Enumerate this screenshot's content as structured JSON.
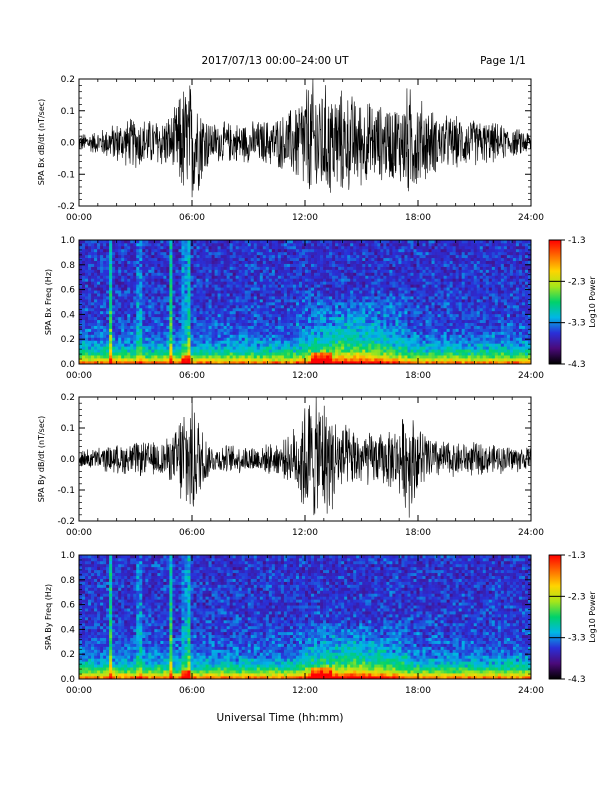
{
  "header": {
    "title": "2017/07/13  00:00–24:00 UT",
    "page": "Page 1/1"
  },
  "footer": {
    "xlabel": "Universal Time (hh:mm)"
  },
  "colorbar": {
    "label": "Log10 Power",
    "ticks": [
      "-1.3",
      "-2.3",
      "-3.3",
      "-4.3"
    ],
    "range": [
      -4.3,
      -1.3
    ],
    "colors": [
      "#000000",
      "#4b0a7a",
      "#2a2fd8",
      "#00b7e6",
      "#00d26a",
      "#a6e61a",
      "#ffd400",
      "#ff6a00",
      "#ff0000"
    ]
  },
  "chart_data": [
    {
      "type": "line",
      "title": "",
      "ylabel": "SPA Bx dB/dt (nT/sec)",
      "xlabel": "",
      "xlim": [
        "00:00",
        "24:00"
      ],
      "ylim": [
        -0.2,
        0.2
      ],
      "x_ticks": [
        "00:00",
        "06:00",
        "12:00",
        "18:00",
        "24:00"
      ],
      "y_ticks": [
        "-0.2",
        "-0.1",
        "0.0",
        "0.1",
        "0.2"
      ],
      "envelope": {
        "hours": [
          0,
          1,
          2,
          3,
          4,
          5,
          5.5,
          6,
          7,
          8,
          9,
          10,
          11,
          11.5,
          12,
          12.5,
          13,
          14,
          15,
          16,
          17,
          17.5,
          18,
          19,
          20,
          21,
          22,
          23,
          24
        ],
        "amplitude": [
          0.03,
          0.04,
          0.07,
          0.09,
          0.08,
          0.1,
          0.2,
          0.22,
          0.07,
          0.07,
          0.07,
          0.08,
          0.1,
          0.14,
          0.2,
          0.22,
          0.2,
          0.18,
          0.15,
          0.13,
          0.14,
          0.2,
          0.16,
          0.1,
          0.09,
          0.08,
          0.07,
          0.05,
          0.04
        ]
      },
      "color": "#000000"
    },
    {
      "type": "heatmap",
      "title": "",
      "ylabel": "SPA Bx Freq (Hz)",
      "xlabel": "",
      "xlim": [
        "00:00",
        "24:00"
      ],
      "ylim": [
        0.0,
        1.0
      ],
      "x_ticks": [
        "00:00",
        "06:00",
        "12:00",
        "18:00",
        "24:00"
      ],
      "y_ticks": [
        "0.0",
        "0.2",
        "0.4",
        "0.6",
        "0.8",
        "1.0"
      ],
      "bright_streaks_hours": [
        1.7,
        3.2,
        4.9,
        5.6,
        5.8
      ],
      "enhanced_band": {
        "hours": [
          11.5,
          17.5
        ],
        "freq_max": 0.55
      },
      "low_freq_power": "high"
    },
    {
      "type": "line",
      "title": "",
      "ylabel": "SPA By dB/dt (nT/sec)",
      "xlabel": "",
      "xlim": [
        "00:00",
        "24:00"
      ],
      "ylim": [
        -0.2,
        0.2
      ],
      "x_ticks": [
        "00:00",
        "06:00",
        "12:00",
        "18:00",
        "24:00"
      ],
      "y_ticks": [
        "-0.2",
        "-0.1",
        "0.0",
        "0.1",
        "0.2"
      ],
      "envelope": {
        "hours": [
          0,
          1,
          2,
          3,
          4,
          5,
          5.5,
          6,
          7,
          8,
          9,
          10,
          11,
          11.5,
          12,
          12.5,
          13,
          14,
          15,
          16,
          17,
          17.5,
          18,
          19,
          20,
          21,
          22,
          23,
          24
        ],
        "amplitude": [
          0.03,
          0.04,
          0.05,
          0.06,
          0.06,
          0.08,
          0.2,
          0.22,
          0.05,
          0.05,
          0.05,
          0.05,
          0.07,
          0.12,
          0.22,
          0.22,
          0.22,
          0.12,
          0.1,
          0.09,
          0.12,
          0.2,
          0.12,
          0.07,
          0.06,
          0.06,
          0.05,
          0.05,
          0.04
        ]
      },
      "color": "#000000"
    },
    {
      "type": "heatmap",
      "title": "",
      "ylabel": "SPA By Freq (Hz)",
      "xlabel": "",
      "xlim": [
        "00:00",
        "24:00"
      ],
      "ylim": [
        0.0,
        1.0
      ],
      "x_ticks": [
        "00:00",
        "06:00",
        "12:00",
        "18:00",
        "24:00"
      ],
      "y_ticks": [
        "0.0",
        "0.2",
        "0.4",
        "0.6",
        "0.8",
        "1.0"
      ],
      "bright_streaks_hours": [
        1.7,
        3.2,
        4.9,
        5.6,
        5.8
      ],
      "enhanced_band": {
        "hours": [
          11.5,
          17.5
        ],
        "freq_max": 0.45
      },
      "low_freq_power": "high"
    }
  ]
}
